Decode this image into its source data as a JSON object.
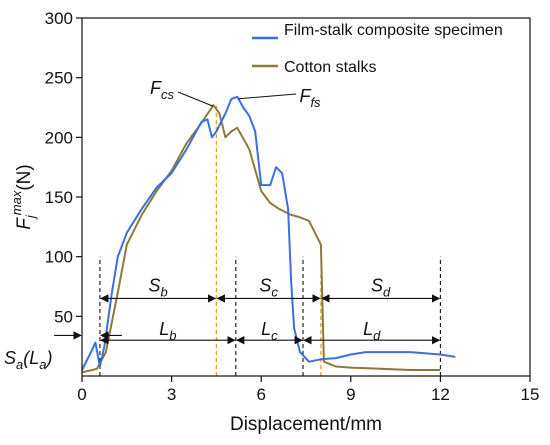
{
  "chart_data": {
    "type": "line",
    "xlabel": "Displacement/mm",
    "ylabel_main": "F",
    "ylabel_sub": "j",
    "ylabel_sup": "max",
    "ylabel_unit": "(N)",
    "xlim": [
      0,
      15
    ],
    "ylim": [
      0,
      300
    ],
    "xticks": [
      0,
      3,
      6,
      9,
      12,
      15
    ],
    "yticks": [
      50,
      100,
      150,
      200,
      250,
      300
    ],
    "ytick_labels": [
      "50",
      "100",
      "150",
      "200",
      "250",
      "300"
    ],
    "legend_position": "top-right",
    "series": [
      {
        "name": "Film-stalk composite specimen",
        "color": "#3b6fe0",
        "points": [
          [
            0.0,
            5
          ],
          [
            0.3,
            20
          ],
          [
            0.45,
            28
          ],
          [
            0.6,
            8
          ],
          [
            0.75,
            25
          ],
          [
            1.0,
            70
          ],
          [
            1.2,
            100
          ],
          [
            1.5,
            120
          ],
          [
            2.0,
            140
          ],
          [
            2.5,
            158
          ],
          [
            3.0,
            170
          ],
          [
            3.5,
            190
          ],
          [
            4.0,
            213
          ],
          [
            4.2,
            215
          ],
          [
            4.35,
            200
          ],
          [
            4.5,
            205
          ],
          [
            4.8,
            220
          ],
          [
            5.0,
            232
          ],
          [
            5.2,
            234
          ],
          [
            5.4,
            225
          ],
          [
            5.6,
            218
          ],
          [
            5.8,
            205
          ],
          [
            6.0,
            160
          ],
          [
            6.3,
            160
          ],
          [
            6.5,
            175
          ],
          [
            6.7,
            170
          ],
          [
            6.9,
            140
          ],
          [
            7.0,
            80
          ],
          [
            7.1,
            40
          ],
          [
            7.3,
            20
          ],
          [
            7.6,
            12
          ],
          [
            8.0,
            14
          ],
          [
            8.5,
            15
          ],
          [
            9.0,
            18
          ],
          [
            9.5,
            20
          ],
          [
            10.0,
            20
          ],
          [
            11.0,
            20
          ],
          [
            12.0,
            18
          ],
          [
            12.5,
            16
          ]
        ]
      },
      {
        "name": "Cotton stalks",
        "color": "#8b7a3a",
        "points": [
          [
            0.0,
            3
          ],
          [
            0.5,
            6
          ],
          [
            0.8,
            20
          ],
          [
            1.2,
            70
          ],
          [
            1.5,
            110
          ],
          [
            2.0,
            135
          ],
          [
            2.5,
            155
          ],
          [
            3.0,
            172
          ],
          [
            3.5,
            195
          ],
          [
            4.0,
            212
          ],
          [
            4.4,
            227
          ],
          [
            4.6,
            220
          ],
          [
            4.8,
            200
          ],
          [
            5.0,
            205
          ],
          [
            5.2,
            208
          ],
          [
            5.6,
            190
          ],
          [
            6.0,
            155
          ],
          [
            6.3,
            145
          ],
          [
            6.6,
            140
          ],
          [
            7.0,
            135
          ],
          [
            7.3,
            133
          ],
          [
            7.6,
            130
          ],
          [
            7.8,
            120
          ],
          [
            8.0,
            110
          ],
          [
            8.1,
            12
          ],
          [
            8.5,
            8
          ],
          [
            9.0,
            7
          ],
          [
            10.0,
            6
          ],
          [
            11.0,
            5
          ],
          [
            12.0,
            5
          ]
        ]
      }
    ],
    "peaks": [
      {
        "label": "F",
        "sub": "cs",
        "x": 4.45,
        "y": 227
      },
      {
        "label": "F",
        "sub": "fs",
        "x": 5.15,
        "y": 234
      }
    ],
    "segments": [
      {
        "label": "S",
        "sub": "b",
        "from": 0.6,
        "to": 4.5,
        "y": 65
      },
      {
        "label": "S",
        "sub": "c",
        "from": 4.5,
        "to": 8.0,
        "y": 65
      },
      {
        "label": "S",
        "sub": "d",
        "from": 8.0,
        "to": 12.0,
        "y": 65
      },
      {
        "label": "L",
        "sub": "b",
        "from": 0.6,
        "to": 5.15,
        "y": 30
      },
      {
        "label": "L",
        "sub": "c",
        "from": 5.15,
        "to": 7.4,
        "y": 30
      },
      {
        "label": "L",
        "sub": "d",
        "from": 7.4,
        "to": 12.0,
        "y": 30
      }
    ],
    "sa_label": "S",
    "sa_sub": "a",
    "sa_paren_open": "(L",
    "sa_paren_sub": "a",
    "sa_paren_close": ")",
    "sa_from": 0.0,
    "sa_to": 0.6,
    "sa_y": 34,
    "dashed_black_x": [
      0.6,
      5.15,
      7.4,
      12.0
    ],
    "dashed_orange_x": [
      4.5,
      8.0
    ],
    "dashed_orange_color": "#e0a020"
  }
}
